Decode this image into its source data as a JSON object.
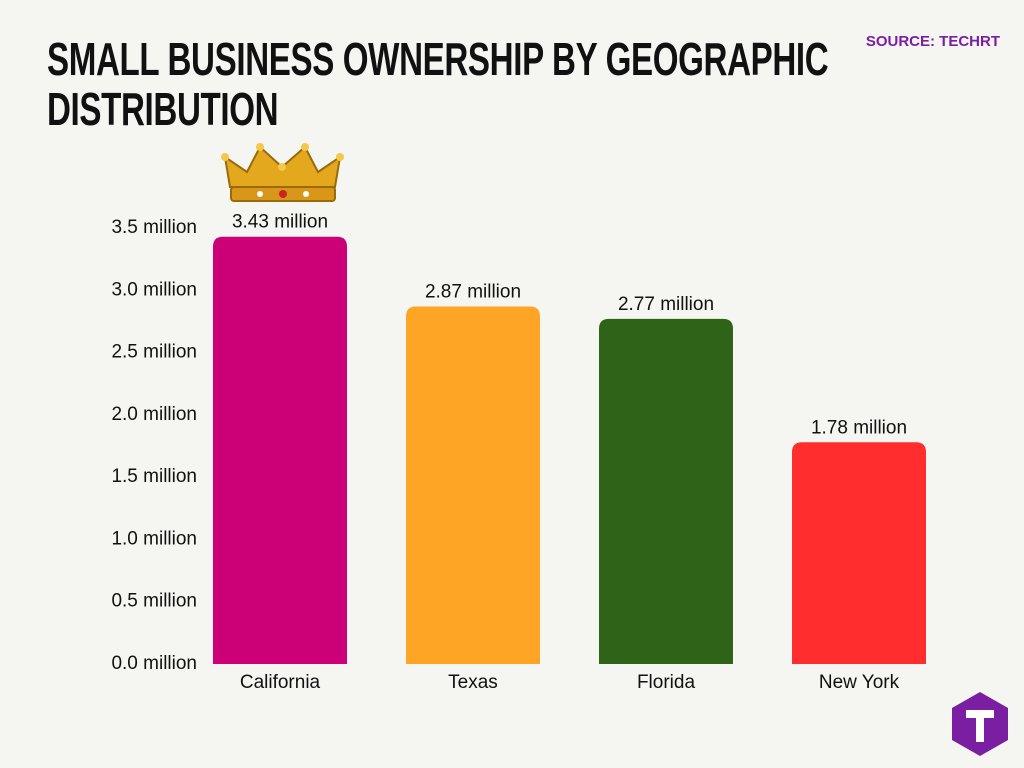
{
  "chart_data": {
    "type": "bar",
    "title": "SMALL BUSINESS OWNERSHIP BY GEOGRAPHIC DISTRIBUTION",
    "source": "SOURCE: TECHRT",
    "categories": [
      "California",
      "Texas",
      "Florida",
      "New York"
    ],
    "values": [
      3.43,
      2.87,
      2.77,
      1.78
    ],
    "value_labels": [
      "3.43 million",
      "2.87 million",
      "2.77 million",
      "1.78 million"
    ],
    "colors": [
      "#cc0077",
      "#ffa526",
      "#2e6318",
      "#ff2d2d"
    ],
    "ylim": [
      0,
      3.5
    ],
    "yticks": [
      {
        "value": 0,
        "label": "0.0 million"
      },
      {
        "value": 0.5,
        "label": "0.5 million"
      },
      {
        "value": 1,
        "label": "1.0 million"
      },
      {
        "value": 1.5,
        "label": "1.5 million"
      },
      {
        "value": 2,
        "label": "2.0 million"
      },
      {
        "value": 2.5,
        "label": "2.5 million"
      },
      {
        "value": 3,
        "label": "3.0 million"
      },
      {
        "value": 3.5,
        "label": "3.5 million"
      }
    ]
  }
}
